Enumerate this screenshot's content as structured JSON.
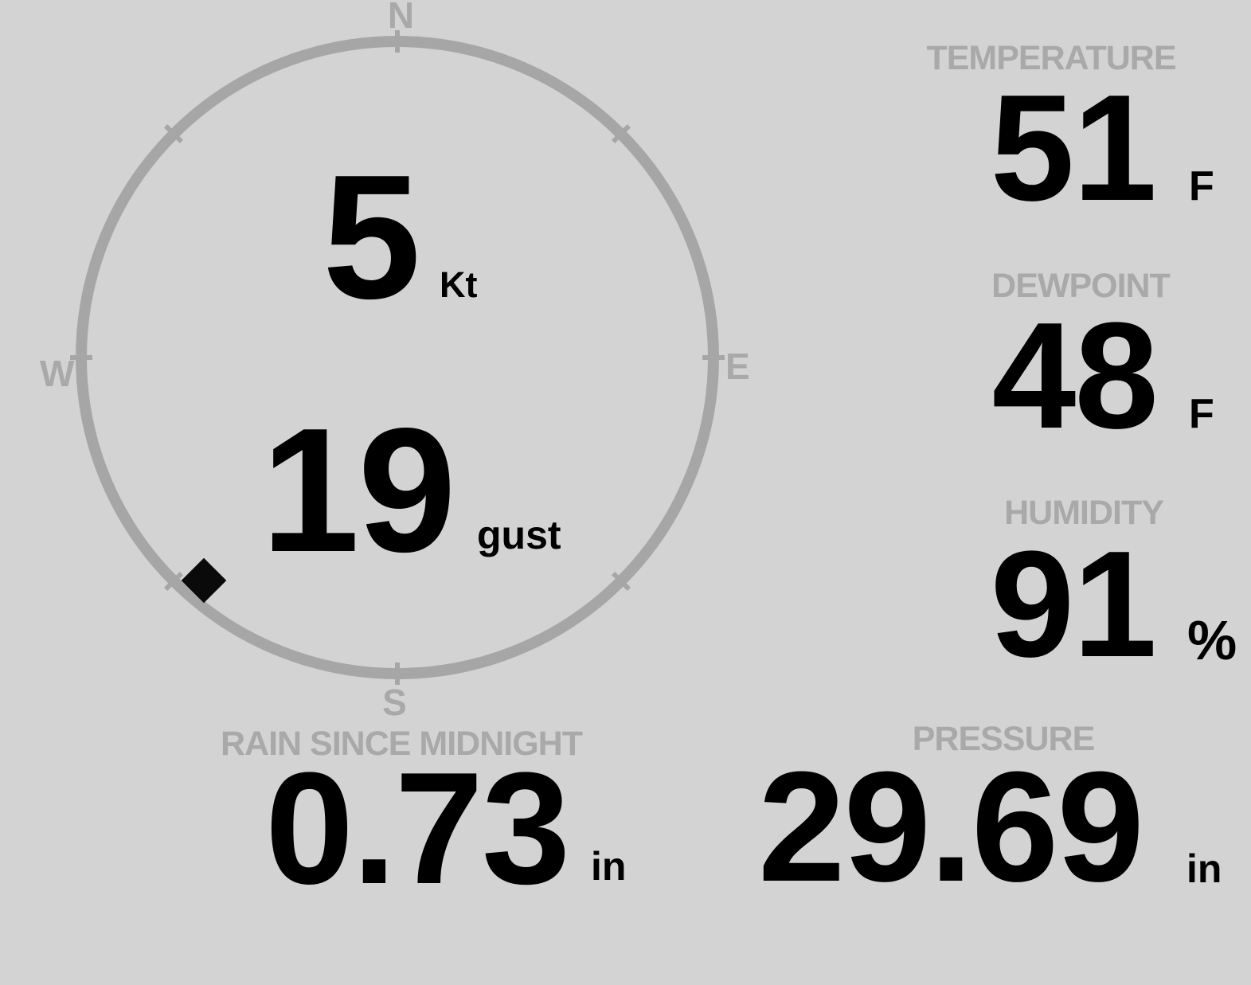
{
  "colors": {
    "background": "#d3d3d3",
    "muted_text": "#a9a9a9",
    "ring": "#a6a6a6",
    "value_text": "#000000"
  },
  "wind_gauge": {
    "compass_labels": {
      "north": "N",
      "east": "E",
      "south": "S",
      "west": "W"
    },
    "speed": {
      "value": "5",
      "unit": "Kt"
    },
    "gust": {
      "value": "19",
      "unit": "gust"
    },
    "direction_bearing_deg": 221
  },
  "metrics": {
    "temperature": {
      "label": "TEMPERATURE",
      "value": "51",
      "unit": "F"
    },
    "dewpoint": {
      "label": "DEWPOINT",
      "value": "48",
      "unit": "F"
    },
    "humidity": {
      "label": "HUMIDITY",
      "value": "91",
      "unit": "%"
    },
    "rain_since_midnight": {
      "label": "RAIN SINCE MIDNIGHT",
      "value": "0.73",
      "unit": "in"
    },
    "pressure": {
      "label": "PRESSURE",
      "value": "29.69",
      "unit": "in"
    }
  }
}
